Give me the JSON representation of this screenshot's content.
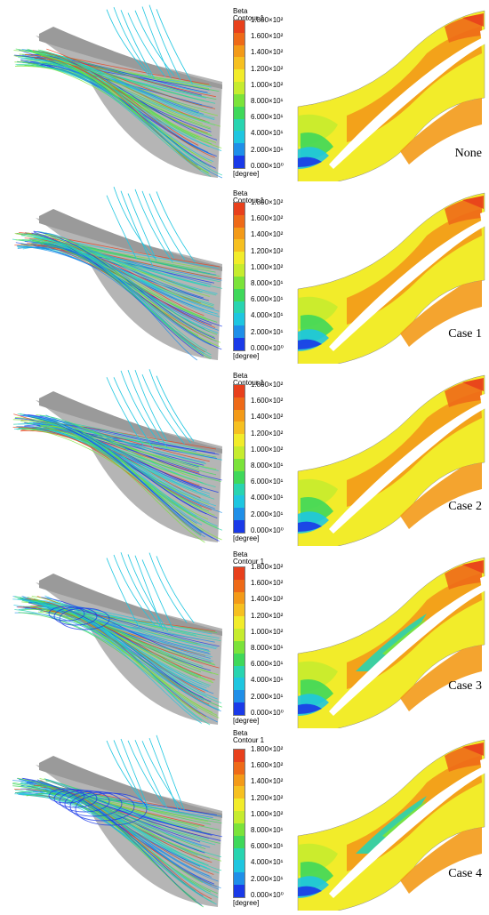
{
  "colormap": [
    "#1a3ae8",
    "#1f8fe8",
    "#1ec6e0",
    "#28d4b0",
    "#3fd85a",
    "#7be33a",
    "#c6ec2e",
    "#f2ec2a",
    "#f6c020",
    "#f39a18",
    "#ee6a18",
    "#e8401c"
  ],
  "legend": {
    "variable": "Beta",
    "contour": "Contour 1",
    "unit": "[degree]",
    "ticks": [
      "1.800×10²",
      "1.600×10²",
      "1.400×10²",
      "1.200×10²",
      "1.000×10²",
      "8.000×10¹",
      "6.000×10¹",
      "4.000×10¹",
      "2.000×10¹",
      "0.000×10⁰"
    ]
  },
  "panels": [
    {
      "case": "None"
    },
    {
      "case": "Case 1"
    },
    {
      "case": "Case 2"
    },
    {
      "case": "Case 3"
    },
    {
      "case": "Case 4"
    }
  ]
}
